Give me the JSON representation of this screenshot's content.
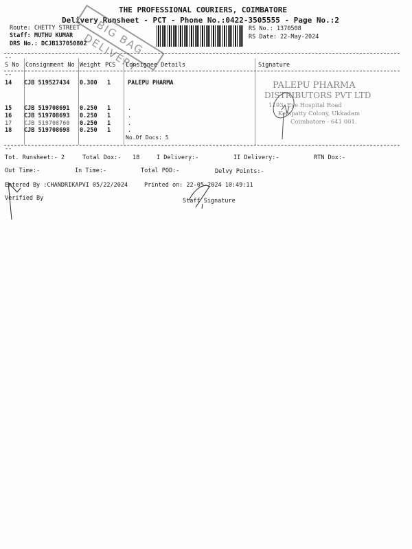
{
  "header": {
    "company": "THE PROFESSIONAL COURIERS, COIMBATORE",
    "subtitle": "Delivery Runsheet - PCT - Phone No.:0422-3505555 - Page No.:2",
    "route": "Route: CHETTY STREET",
    "staff": "Staff: MUTHU KUMAR",
    "drs": "DRS No.: DCJB137050802",
    "rs_no": "RS No.: 1370508",
    "rs_date": "RS Date: 22-May-2024"
  },
  "stamp": {
    "text": "BIG BAG DELIVERY"
  },
  "table": {
    "headers": [
      "S No",
      "Consignment No",
      "Weight",
      "PCS",
      "Consignee Details",
      "Signature"
    ],
    "rows": [
      {
        "sno": "14",
        "cons": "CJB 519527434",
        "weight": "0.300",
        "pcs": "1",
        "details": "PALEPU PHARMA"
      },
      {
        "sno": "15",
        "cons": "CJB 519708691",
        "weight": "0.250",
        "pcs": "1",
        "details": "."
      },
      {
        "sno": "16",
        "cons": "CJB 519708693",
        "weight": "0.250",
        "pcs": "1",
        "details": "."
      },
      {
        "sno": "17",
        "cons": "CJB 519708760",
        "weight": "0.250",
        "pcs": "1",
        "details": "."
      },
      {
        "sno": "18",
        "cons": "CJB 519708698",
        "weight": "0.250",
        "pcs": "1",
        "details": "."
      }
    ],
    "docs": "No.Of Docs: 5"
  },
  "company_stamp": {
    "line1": "PALEPU PHARMA",
    "line2": "DISTRIBUTORS PVT LTD",
    "line3": "1193, Eye Hospital Road",
    "line4": "Kempatty Colony, Ukkadam",
    "line5": "Coimbatore - 641 001."
  },
  "footer": {
    "tot_runsheet": "Tot. Runsheet:- 2",
    "total_dox": "Total Dox:-",
    "total_dox_val": "18",
    "i_delivery": "I Delivery:-",
    "ii_delivery": "II Delivery:-",
    "rtn_dox": "RTN Dox:-",
    "out_time": "Out Time:-",
    "in_time": "In Time:-",
    "total_pod": "Total POD:-",
    "delvy_points": "Delvy Points:-",
    "entered_by": "Entered By :CHANDRIKAPVI 05/22/2024",
    "printed_on": "Printed on: 22-05-2024 10:49:11",
    "verified_by": "Verified By",
    "staff_signature": "Staff Signature"
  }
}
